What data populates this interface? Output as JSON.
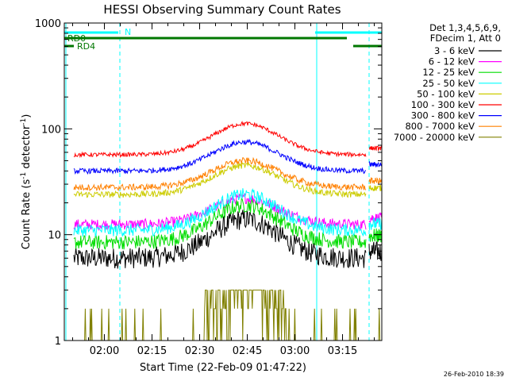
{
  "chart_data": {
    "type": "line",
    "title": "HESSI Observing Summary Count Rates",
    "xlabel": "Start Time (22-Feb-09 01:47:22)",
    "ylabel_main": "Count Rate (s",
    "ylabel_sup1": "-1",
    "ylabel_mid": " detector",
    "ylabel_sup2": "-1",
    "ylabel_end": ")",
    "y_scale": "log",
    "ylim": [
      1,
      1000
    ],
    "xlim_minutes": [
      0,
      100
    ],
    "x_ticks": [
      {
        "minute": 12.63,
        "label": "02:00"
      },
      {
        "minute": 27.63,
        "label": "02:15"
      },
      {
        "minute": 42.63,
        "label": "02:30"
      },
      {
        "minute": 57.63,
        "label": "02:45"
      },
      {
        "minute": 72.63,
        "label": "03:00"
      },
      {
        "minute": 87.63,
        "label": "03:15"
      }
    ],
    "y_ticks": [
      {
        "value": 1,
        "label": "1"
      },
      {
        "value": 10,
        "label": "10"
      },
      {
        "value": 100,
        "label": "100"
      },
      {
        "value": 1000,
        "label": "1000"
      }
    ],
    "legend_header": [
      "Det 1,3,4,5,6,9,",
      "FDecim 1, Att 0"
    ],
    "legend_position": "outside-right",
    "timestamp": "26-Feb-2010 18:39",
    "data_gap_minutes": [
      3,
      95
    ],
    "series": [
      {
        "name": "3 - 6 keV",
        "color": "#000000",
        "base": 6.0,
        "peak": 14.0,
        "noise": 0.1
      },
      {
        "name": "6 - 12 keV",
        "color": "#ff00ff",
        "base": 12.5,
        "peak": 22.0,
        "noise": 0.05
      },
      {
        "name": "12 - 25 keV",
        "color": "#00dd00",
        "base": 8.5,
        "peak": 19.0,
        "noise": 0.07
      },
      {
        "name": "25 - 50 keV",
        "color": "#00ffff",
        "base": 11.0,
        "peak": 24.0,
        "noise": 0.06
      },
      {
        "name": "50 - 100 keV",
        "color": "#cccc00",
        "base": 24.0,
        "peak": 45.0,
        "noise": 0.03
      },
      {
        "name": "100 - 300 keV",
        "color": "#ff0000",
        "base": 57.0,
        "peak": 112.0,
        "noise": 0.02
      },
      {
        "name": "300 - 800 keV",
        "color": "#0000ff",
        "base": 40.0,
        "peak": 75.0,
        "noise": 0.025
      },
      {
        "name": "800 - 7000 keV",
        "color": "#ff8000",
        "base": 28.0,
        "peak": 50.0,
        "noise": 0.03
      },
      {
        "name": "7000 - 20000 keV",
        "color": "#808000",
        "base": 1.0,
        "peak": 3.0,
        "noise": 0.0
      }
    ],
    "flags": [
      {
        "label": "N",
        "color": "#00ffff",
        "segments_minutes": [
          [
            0,
            17
          ],
          [
            79,
            100
          ]
        ]
      },
      {
        "label": "RD0",
        "color": "#007700",
        "segments_minutes": [
          [
            0,
            89
          ]
        ]
      },
      {
        "label": "RD4",
        "color": "#007700",
        "segments_minutes": [
          [
            0,
            3
          ],
          [
            91,
            100
          ]
        ]
      }
    ],
    "vertical_lines": [
      {
        "minute": 0.5,
        "color": "#00ffff",
        "style": "solid"
      },
      {
        "minute": 17.5,
        "color": "#00ffff",
        "style": "dashed"
      },
      {
        "minute": 79.5,
        "color": "#00ffff",
        "style": "solid"
      },
      {
        "minute": 96,
        "color": "#00ffff",
        "style": "dashed"
      }
    ]
  }
}
